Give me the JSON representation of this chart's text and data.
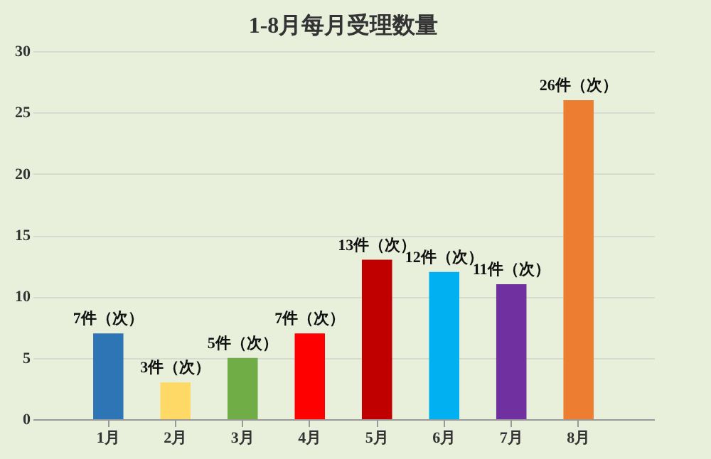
{
  "chart_data": {
    "type": "bar",
    "title": "1-8月每月受理数量",
    "categories": [
      "1月",
      "2月",
      "3月",
      "4月",
      "5月",
      "6月",
      "7月",
      "8月"
    ],
    "values": [
      7,
      3,
      5,
      7,
      13,
      12,
      11,
      26
    ],
    "colors": [
      "#2e75b6",
      "#ffd966",
      "#70ad47",
      "#ff0000",
      "#c00000",
      "#00b0f0",
      "#7030a0",
      "#ed7d31"
    ],
    "value_labels": [
      "7件（次）",
      "3件（次）",
      "5件（次）",
      "7件（次）",
      "13件（次）",
      "12件（次）",
      "11件（次）",
      "26件（次）"
    ],
    "ylim": [
      0,
      30
    ],
    "yticks": [
      0,
      5,
      10,
      15,
      20,
      25,
      30
    ],
    "grid": "y"
  }
}
